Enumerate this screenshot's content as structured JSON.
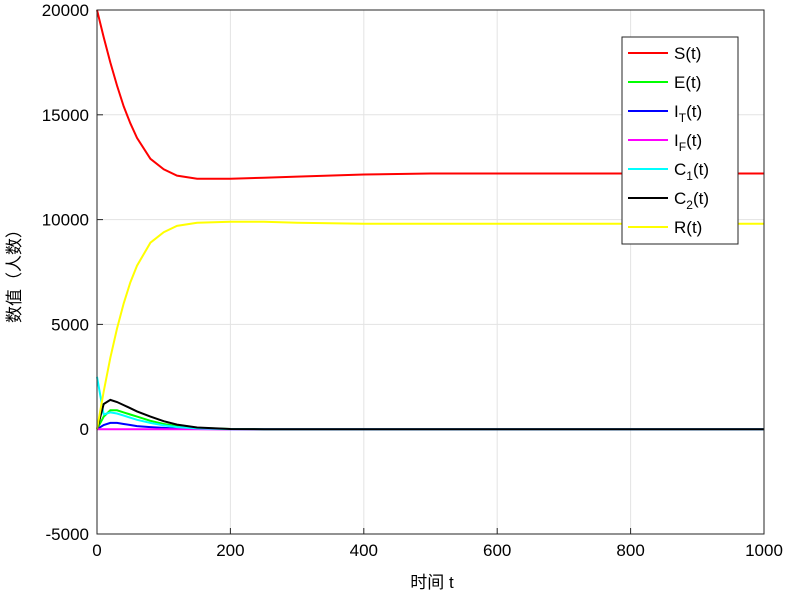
{
  "chart_data": {
    "type": "line",
    "xlabel": "时间 t",
    "ylabel": "数值（人数）",
    "x": [
      0,
      10,
      20,
      30,
      40,
      50,
      60,
      80,
      100,
      120,
      150,
      200,
      250,
      300,
      400,
      500,
      600,
      800,
      1000
    ],
    "series": [
      {
        "name": "S(t)",
        "color": "#ff0000",
        "values": [
          20000,
          18700,
          17500,
          16400,
          15400,
          14600,
          13900,
          12900,
          12400,
          12100,
          11950,
          11950,
          12000,
          12050,
          12150,
          12200,
          12200,
          12200,
          12200
        ]
      },
      {
        "name": "E(t)",
        "color": "#00ff00",
        "values": [
          0,
          600,
          900,
          900,
          800,
          700,
          600,
          400,
          250,
          150,
          60,
          10,
          0,
          0,
          0,
          0,
          0,
          0,
          0
        ]
      },
      {
        "name": "I_T(t)",
        "color": "#0000ff",
        "values": [
          0,
          200,
          300,
          300,
          250,
          200,
          150,
          100,
          60,
          30,
          10,
          0,
          0,
          0,
          0,
          0,
          0,
          0,
          0
        ]
      },
      {
        "name": "I_F(t)",
        "color": "#ff00ff",
        "values": [
          0,
          0,
          0,
          0,
          0,
          0,
          0,
          0,
          0,
          0,
          0,
          0,
          0,
          0,
          0,
          0,
          0,
          0,
          0
        ]
      },
      {
        "name": "C_1(t)",
        "color": "#00ffff",
        "values": [
          2500,
          700,
          800,
          750,
          650,
          550,
          450,
          300,
          180,
          100,
          40,
          5,
          0,
          0,
          0,
          0,
          0,
          0,
          0
        ]
      },
      {
        "name": "C_2(t)",
        "color": "#000000",
        "values": [
          0,
          1200,
          1400,
          1300,
          1150,
          1000,
          850,
          600,
          380,
          220,
          80,
          10,
          0,
          0,
          0,
          0,
          0,
          0,
          0
        ]
      },
      {
        "name": "R(t)",
        "color": "#ffff00",
        "values": [
          0,
          1800,
          3400,
          4800,
          6000,
          7000,
          7800,
          8900,
          9400,
          9700,
          9850,
          9900,
          9900,
          9850,
          9800,
          9800,
          9800,
          9800,
          9800
        ]
      }
    ],
    "xlim": [
      0,
      1000
    ],
    "xticks": [
      0,
      200,
      400,
      600,
      800,
      1000
    ],
    "ylim": [
      -5000,
      20000
    ],
    "yticks": [
      -5000,
      0,
      5000,
      10000,
      15000,
      20000
    ],
    "grid": true,
    "legend": "northeast"
  }
}
